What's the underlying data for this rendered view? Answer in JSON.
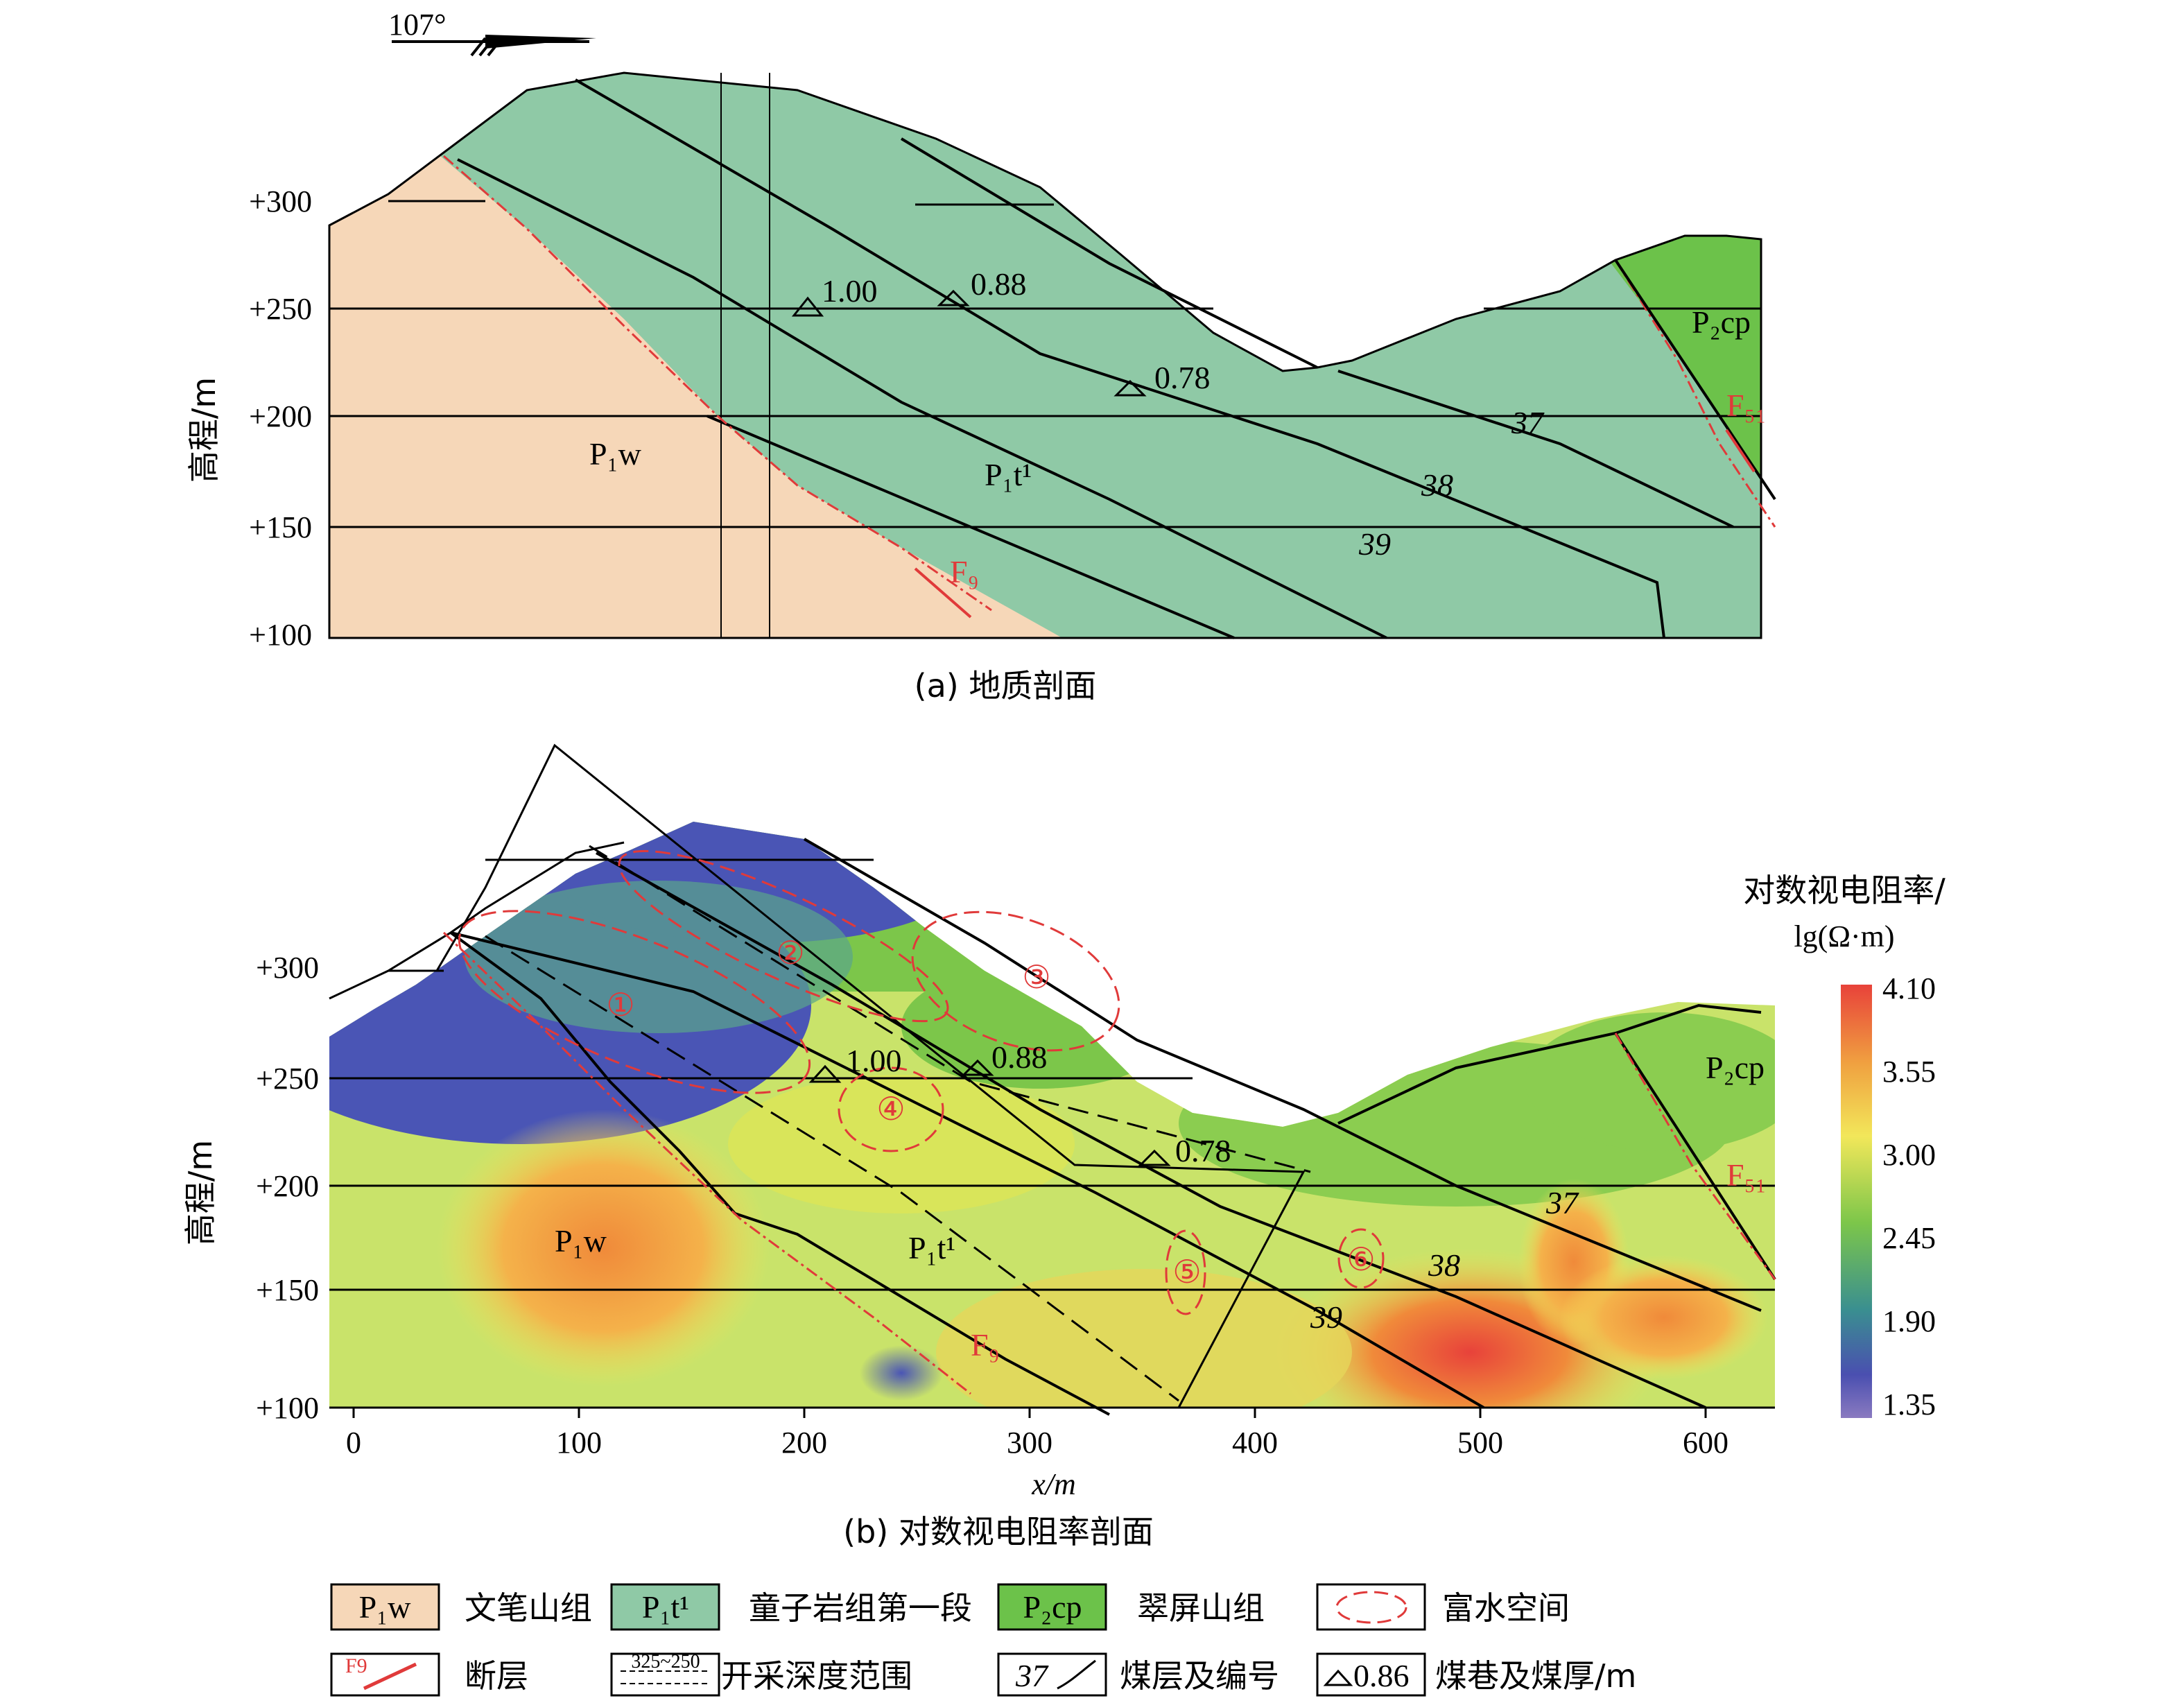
{
  "top_panel": {
    "strike_label": "107°",
    "y_axis_label": "高程/m",
    "y_ticks": [
      "+300",
      "+250",
      "+200",
      "+150",
      "+100"
    ],
    "formations": {
      "p1w": "P₁w",
      "p1t1": "P₁t¹",
      "p2cp": "P₂cp"
    },
    "coal_seams": [
      "37",
      "38",
      "39"
    ],
    "roadways": [
      "1.00",
      "0.88",
      "0.78"
    ],
    "faults": [
      "F₉",
      "F₅₁"
    ],
    "caption": "(a) 地质剖面",
    "colors": {
      "p1w": "#f6d7b8",
      "p1t1": "#8fc9a6",
      "p2cp": "#6cc24a",
      "fault": "#e03a3a"
    }
  },
  "bottom_panel": {
    "y_axis_label": "高程/m",
    "x_axis_label": "x/m",
    "y_ticks": [
      "+300",
      "+250",
      "+200",
      "+150",
      "+100"
    ],
    "x_ticks": [
      "0",
      "100",
      "200",
      "300",
      "400",
      "500",
      "600"
    ],
    "water_zones": [
      "①",
      "②",
      "③",
      "④",
      "⑤",
      "⑥"
    ],
    "roadways": [
      "1.00",
      "0.88",
      "0.78"
    ],
    "coal_seams": [
      "37",
      "38",
      "39"
    ],
    "formations": {
      "p1w": "P₁w",
      "p1t1": "P₁t¹",
      "p2cp": "P₂cp"
    },
    "faults": [
      "F₉",
      "F₅₁"
    ],
    "caption": "(b) 对数视电阻率剖面",
    "colorbar": {
      "title_line1": "对数视电阻率/",
      "title_line2": "lg(Ω·m)",
      "ticks": [
        "4.10",
        "3.55",
        "3.00",
        "2.45",
        "1.90",
        "1.35"
      ],
      "colors": [
        "#e8423a",
        "#f0a040",
        "#f2e75a",
        "#7cc64a",
        "#3a8f90",
        "#4a4fb0",
        "#8a7ac0"
      ]
    }
  },
  "legend": {
    "items": [
      {
        "swatch": "P₁w",
        "label": "文笔山组"
      },
      {
        "swatch": "P₁t¹",
        "label": "童子岩组第一段"
      },
      {
        "swatch": "P₂cp",
        "label": "翠屏山组"
      },
      {
        "swatch": "",
        "label": "富水空间"
      },
      {
        "swatch": "F9",
        "label": "断层"
      },
      {
        "swatch": "325~250",
        "label": "开采深度范围"
      },
      {
        "swatch": "37",
        "label": "煤层及编号"
      },
      {
        "swatch": "0.86",
        "label": "煤巷及煤厚/m"
      }
    ]
  }
}
